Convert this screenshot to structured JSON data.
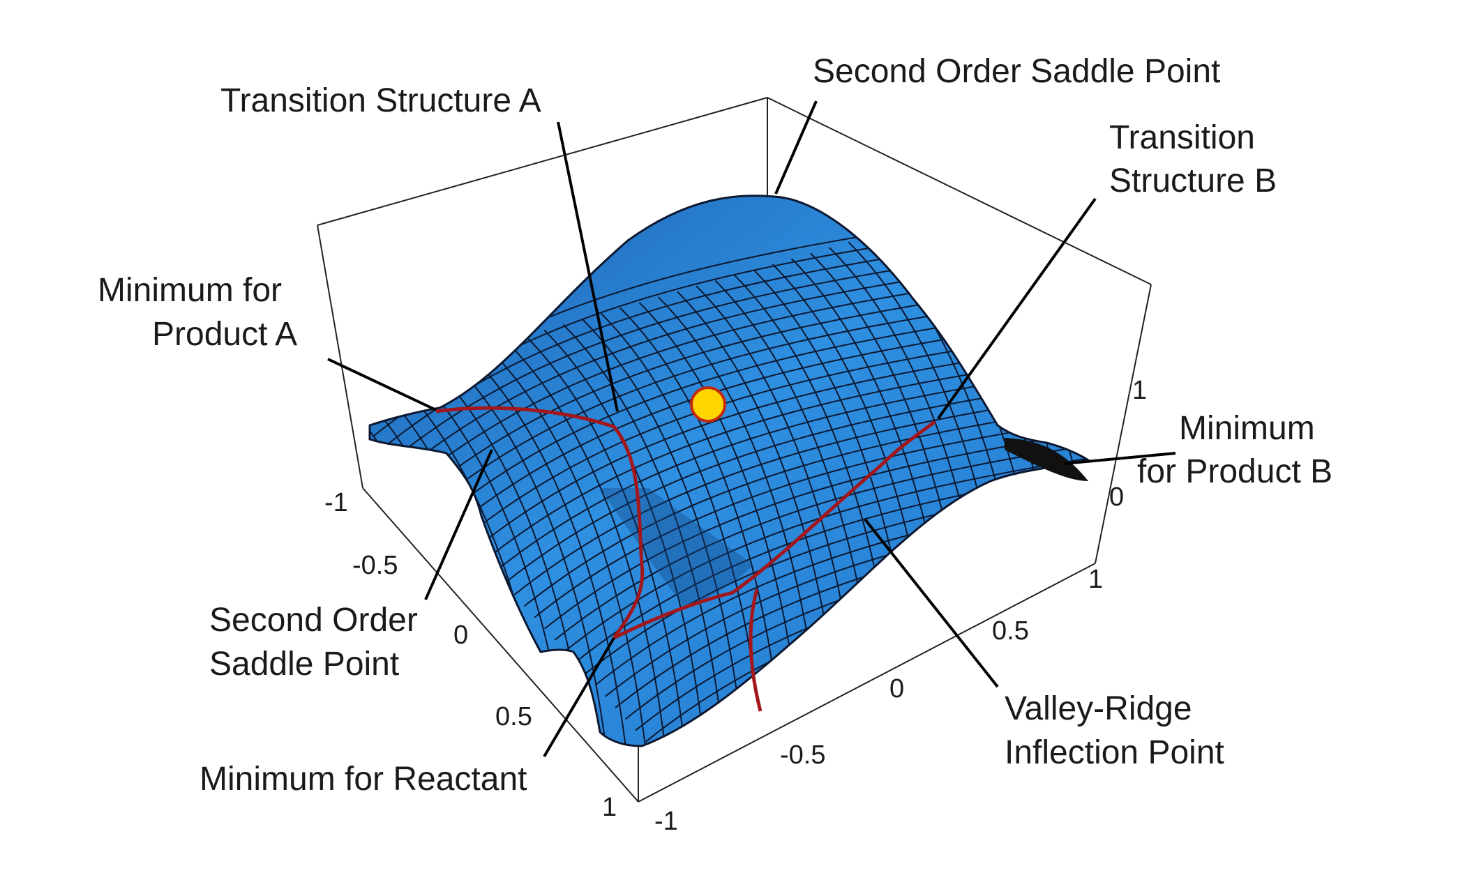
{
  "labels": {
    "transition_structure_a": "Transition Structure A",
    "second_order_saddle_top": "Second Order Saddle Point",
    "transition_structure_b_line1": "Transition",
    "transition_structure_b_line2": "Structure B",
    "min_product_a_line1": "Minimum for",
    "min_product_a_line2": "Product A",
    "min_product_b_line1": "Minimum",
    "min_product_b_line2": "for Product B",
    "second_order_saddle_left_line1": "Second Order",
    "second_order_saddle_left_line2": "Saddle Point",
    "min_reactant": "Minimum for Reactant",
    "vri_line1": "Valley-Ridge",
    "vri_line2": "Inflection Point"
  },
  "axis_ticks": {
    "left_axis": [
      "-1",
      "-0.5",
      "0",
      "0.5",
      "1"
    ],
    "front_axis": [
      "-1",
      "-0.5",
      "0",
      "0.5",
      "1"
    ],
    "vertical_axis": [
      "1",
      "0"
    ]
  },
  "colors": {
    "surface": "#2f8fe0",
    "surface_dark": "#1c5fae",
    "mesh": "#0b1830",
    "path": "#a3161c",
    "marker_fill": "#ffd500",
    "marker_stroke": "#c22a12"
  }
}
